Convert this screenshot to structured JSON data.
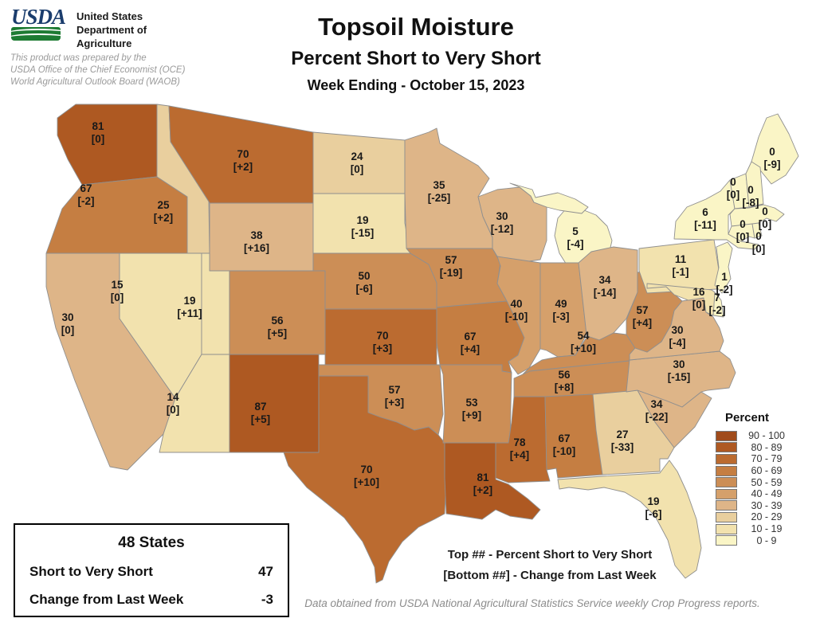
{
  "header": {
    "logo_word": "USDA",
    "agency_lines": [
      "United States",
      "Department of",
      "Agriculture"
    ],
    "prepared_lines": [
      "This product was prepared by the",
      "USDA Office of the Chief Economist (OCE)",
      "World Agricultural Outlook Board (WAOB)"
    ]
  },
  "title": {
    "main": "Topsoil Moisture",
    "sub": "Percent Short to Very Short",
    "week": "Week Ending - October 15, 2023"
  },
  "legend": {
    "title": "Percent",
    "items": [
      {
        "range": "90 - 100",
        "color": "#a04b1b"
      },
      {
        "range": "80 - 89",
        "color": "#ae5922"
      },
      {
        "range": "70 - 79",
        "color": "#bb6b30"
      },
      {
        "range": "60 - 69",
        "color": "#c57e42"
      },
      {
        "range": "50 - 59",
        "color": "#cc8e56"
      },
      {
        "range": "40 - 49",
        "color": "#d5a06b"
      },
      {
        "range": "30 - 39",
        "color": "#deb588"
      },
      {
        "range": "20 - 29",
        "color": "#e9cf9e"
      },
      {
        "range": "10 - 19",
        "color": "#f2e2ae"
      },
      {
        "range": "0 - 9",
        "color": "#faf5c6"
      }
    ]
  },
  "summary": {
    "title": "48 States",
    "rows": [
      {
        "label": "Short to Very Short",
        "value": "47"
      },
      {
        "label": "Change from Last Week",
        "value": "-3"
      }
    ]
  },
  "notes": {
    "line1": "Top ## - Percent Short to Very Short",
    "line2": "[Bottom ##] - Change from Last Week",
    "source": "Data obtained from USDA National Agricultural Statistics Service weekly Crop Progress reports."
  },
  "map": {
    "states": [
      {
        "id": "WA",
        "name": "Washington",
        "value": 81,
        "change": "0"
      },
      {
        "id": "OR",
        "name": "Oregon",
        "value": 67,
        "change": "-2"
      },
      {
        "id": "CA",
        "name": "California",
        "value": 30,
        "change": "0"
      },
      {
        "id": "NV",
        "name": "Nevada",
        "value": 15,
        "change": "0"
      },
      {
        "id": "ID",
        "name": "Idaho",
        "value": 25,
        "change": "+2"
      },
      {
        "id": "MT",
        "name": "Montana",
        "value": 70,
        "change": "+2"
      },
      {
        "id": "WY",
        "name": "Wyoming",
        "value": 38,
        "change": "+16"
      },
      {
        "id": "UT",
        "name": "Utah",
        "value": 19,
        "change": "+11"
      },
      {
        "id": "AZ",
        "name": "Arizona",
        "value": 14,
        "change": "0"
      },
      {
        "id": "NM",
        "name": "New Mexico",
        "value": 87,
        "change": "+5"
      },
      {
        "id": "CO",
        "name": "Colorado",
        "value": 56,
        "change": "+5"
      },
      {
        "id": "ND",
        "name": "North Dakota",
        "value": 24,
        "change": "0"
      },
      {
        "id": "SD",
        "name": "South Dakota",
        "value": 19,
        "change": "-15"
      },
      {
        "id": "NE",
        "name": "Nebraska",
        "value": 50,
        "change": "-6"
      },
      {
        "id": "KS",
        "name": "Kansas",
        "value": 70,
        "change": "+3"
      },
      {
        "id": "OK",
        "name": "Oklahoma",
        "value": 57,
        "change": "+3"
      },
      {
        "id": "TX",
        "name": "Texas",
        "value": 70,
        "change": "+10"
      },
      {
        "id": "MN",
        "name": "Minnesota",
        "value": 35,
        "change": "-25"
      },
      {
        "id": "IA",
        "name": "Iowa",
        "value": 57,
        "change": "-19"
      },
      {
        "id": "MO",
        "name": "Missouri",
        "value": 67,
        "change": "+4"
      },
      {
        "id": "AR",
        "name": "Arkansas",
        "value": 53,
        "change": "+9"
      },
      {
        "id": "LA",
        "name": "Louisiana",
        "value": 81,
        "change": "+2"
      },
      {
        "id": "WI",
        "name": "Wisconsin",
        "value": 30,
        "change": "-12"
      },
      {
        "id": "IL",
        "name": "Illinois",
        "value": 40,
        "change": "-10"
      },
      {
        "id": "MS",
        "name": "Mississippi",
        "value": 78,
        "change": "+4"
      },
      {
        "id": "MI",
        "name": "Michigan",
        "value": 5,
        "change": "-4"
      },
      {
        "id": "IN",
        "name": "Indiana",
        "value": 49,
        "change": "-3"
      },
      {
        "id": "OH",
        "name": "Ohio",
        "value": 34,
        "change": "-14"
      },
      {
        "id": "KY",
        "name": "Kentucky",
        "value": 54,
        "change": "+10"
      },
      {
        "id": "TN",
        "name": "Tennessee",
        "value": 56,
        "change": "+8"
      },
      {
        "id": "AL",
        "name": "Alabama",
        "value": 67,
        "change": "-10"
      },
      {
        "id": "GA",
        "name": "Georgia",
        "value": 27,
        "change": "-33"
      },
      {
        "id": "FL",
        "name": "Florida",
        "value": 19,
        "change": "-6"
      },
      {
        "id": "SC",
        "name": "South Carolina",
        "value": 34,
        "change": "-22"
      },
      {
        "id": "NC",
        "name": "North Carolina",
        "value": 30,
        "change": "-15"
      },
      {
        "id": "VA",
        "name": "Virginia",
        "value": 30,
        "change": "-4"
      },
      {
        "id": "WV",
        "name": "West Virginia",
        "value": 57,
        "change": "+4"
      },
      {
        "id": "PA",
        "name": "Pennsylvania",
        "value": 11,
        "change": "-1"
      },
      {
        "id": "NY",
        "name": "New York",
        "value": 6,
        "change": "-11"
      },
      {
        "id": "NJ",
        "name": "New Jersey",
        "value": 1,
        "change": "-2"
      },
      {
        "id": "DE",
        "name": "Delaware",
        "value": 7,
        "change": "-2"
      },
      {
        "id": "MD",
        "name": "Maryland",
        "value": 16,
        "change": "0"
      },
      {
        "id": "ME",
        "name": "Maine",
        "value": 0,
        "change": "-9"
      },
      {
        "id": "VT",
        "name": "Vermont",
        "value": 0,
        "change": "0"
      },
      {
        "id": "NH",
        "name": "New Hampshire",
        "value": 0,
        "change": "-8"
      },
      {
        "id": "MA",
        "name": "Massachusetts",
        "value": 0,
        "change": "0"
      },
      {
        "id": "CT",
        "name": "Connecticut",
        "value": 0,
        "change": "0"
      },
      {
        "id": "RI",
        "name": "Rhode Island",
        "value": 0,
        "change": "0"
      }
    ]
  }
}
